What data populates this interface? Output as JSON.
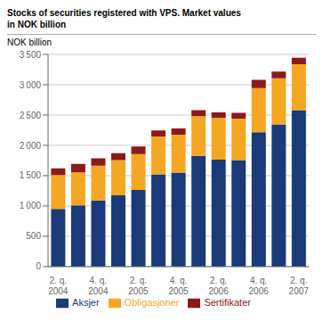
{
  "chart_data": {
    "type": "bar",
    "title": "Stocks of securities registered with VPS. Market values\nin NOK billion",
    "ylabel": "NOK billion",
    "categories": [
      "2. q.\n2004",
      null,
      "4. q.\n2004",
      null,
      "2. q.\n2005",
      null,
      "4. q.\n2005",
      null,
      "2. q.\n2006",
      null,
      "4. q.\n2006",
      null,
      "2. q.\n2007"
    ],
    "series": [
      {
        "name": "Aksjer",
        "color": "#1a3a7a",
        "values": [
          950,
          1010,
          1090,
          1175,
          1265,
          1520,
          1550,
          1825,
          1765,
          1755,
          2215,
          2345,
          2580
        ]
      },
      {
        "name": "Obligasjoner",
        "color": "#f5a623",
        "values": [
          560,
          545,
          575,
          580,
          590,
          625,
          625,
          655,
          690,
          685,
          730,
          760,
          760
        ]
      },
      {
        "name": "Sertifikater",
        "color": "#8b1a1a",
        "values": [
          110,
          140,
          120,
          115,
          125,
          100,
          105,
          100,
          90,
          95,
          135,
          110,
          105
        ]
      }
    ],
    "stacked": true,
    "ylim": [
      0,
      3500
    ],
    "yticks": [
      0,
      500,
      {
        "value": 1000,
        "label": "1 000"
      },
      {
        "value": 1500,
        "label": "1 500"
      },
      {
        "value": 2000,
        "label": "2 000"
      },
      {
        "value": 2500,
        "label": "2 500"
      },
      {
        "value": 3000,
        "label": "3 000"
      },
      {
        "value": 3500,
        "label": "3 500"
      }
    ],
    "grid": true,
    "legend": "bottom"
  }
}
